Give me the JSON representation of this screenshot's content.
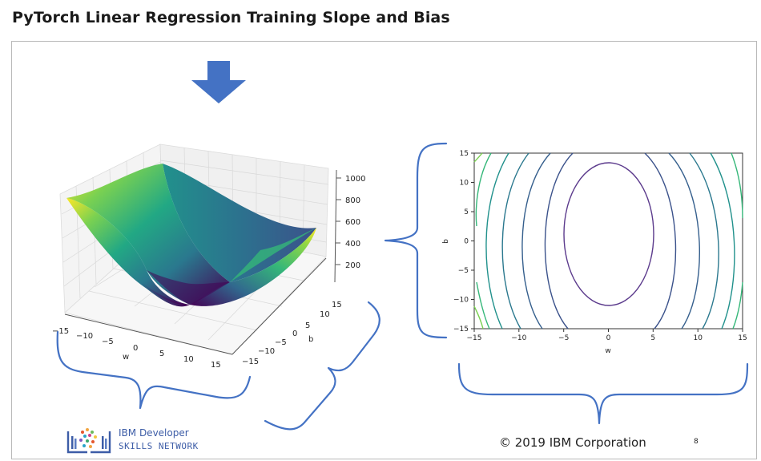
{
  "page": {
    "title": "PyTorch Linear Regression Training Slope and Bias"
  },
  "surface_plot": {
    "z_ticks": [
      "1000",
      "800",
      "600",
      "400",
      "200"
    ],
    "w_ticks": [
      "−15",
      "−10",
      "−5",
      "0",
      "5",
      "10",
      "15"
    ],
    "b_ticks": [
      "15",
      "10",
      "5",
      "0",
      "−5",
      "−10",
      "−15"
    ],
    "w_label": "w",
    "b_label": "b",
    "colormap": [
      "#440154",
      "#3b528b",
      "#21918c",
      "#5ec962",
      "#fde725"
    ]
  },
  "contour_plot": {
    "x_ticks": [
      "−15",
      "−10",
      "−5",
      "0",
      "5",
      "10",
      "15"
    ],
    "y_ticks": [
      "15",
      "10",
      "5",
      "0",
      "−5",
      "−10",
      "−15"
    ],
    "x_label": "w",
    "y_label": "b",
    "xlim": [
      -15,
      15
    ],
    "ylim": [
      -15,
      15
    ]
  },
  "annotation": {
    "color": "#4472c4"
  },
  "logo": {
    "line1": "IBM Developer",
    "line2": "SKILLS NETWORK"
  },
  "footer": {
    "copyright": "© 2019 IBM Corporation",
    "page_number": "8"
  }
}
